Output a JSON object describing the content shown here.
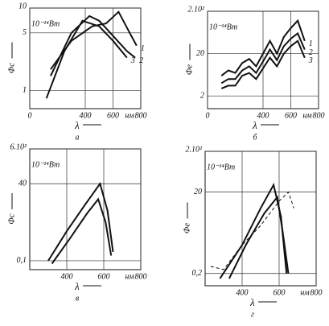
{
  "chart_data": [
    {
      "type": "line",
      "caption": "а",
      "x_label": "λ",
      "x_unit": "нм",
      "y_label": "Φc",
      "y_unit": "10⁻¹⁴Вт",
      "xlim": [
        0,
        800
      ],
      "xticks": [
        0,
        400,
        600,
        800
      ],
      "ylim": [
        0.6,
        10
      ],
      "yticks": [
        1,
        5,
        10
      ],
      "y_scale": "log",
      "grid": true,
      "series": [
        {
          "name": "1",
          "color": "#111111",
          "x": [
            150,
            300,
            450,
            550,
            640,
            720,
            770
          ],
          "values": [
            1.8,
            4,
            6,
            6.5,
            9,
            5,
            3.5
          ]
        },
        {
          "name": "2",
          "color": "#111111",
          "x": [
            150,
            300,
            430,
            500,
            580,
            700,
            760
          ],
          "values": [
            1.5,
            5,
            8,
            7,
            5,
            3,
            2.5
          ]
        },
        {
          "name": "3",
          "color": "#111111",
          "x": [
            120,
            250,
            380,
            500,
            600,
            700
          ],
          "values": [
            0.8,
            3,
            7,
            6,
            4,
            2.5
          ]
        }
      ]
    },
    {
      "type": "line",
      "caption": "б",
      "x_label": "λ",
      "x_unit": "нм",
      "y_label": "Φe",
      "y_unit": "10⁻¹⁴Вт",
      "xlim": [
        0,
        800
      ],
      "xticks": [
        0,
        400,
        600,
        800
      ],
      "ylim": [
        1,
        200
      ],
      "yticks": [
        2,
        20,
        {
          "value": 200,
          "label": "2.10²"
        }
      ],
      "y_scale": "log",
      "grid": true,
      "series": [
        {
          "name": "1",
          "color": "#111111",
          "x": [
            100,
            150,
            200,
            250,
            300,
            350,
            400,
            450,
            500,
            550,
            600,
            650,
            700
          ],
          "values": [
            6,
            8,
            7,
            12,
            15,
            10,
            20,
            40,
            20,
            50,
            80,
            120,
            40
          ]
        },
        {
          "name": "2",
          "color": "#111111",
          "x": [
            100,
            150,
            200,
            250,
            300,
            350,
            400,
            450,
            500,
            550,
            600,
            650,
            700
          ],
          "values": [
            4,
            5,
            5,
            8,
            10,
            7,
            13,
            25,
            14,
            30,
            45,
            60,
            25
          ]
        },
        {
          "name": "3",
          "color": "#111111",
          "x": [
            100,
            150,
            200,
            250,
            300,
            350,
            400,
            450,
            500,
            550,
            600,
            650,
            700
          ],
          "values": [
            3,
            3.5,
            3.5,
            6,
            7,
            5,
            9,
            16,
            10,
            20,
            30,
            40,
            16
          ]
        }
      ]
    },
    {
      "type": "line",
      "caption": "в",
      "x_label": "λ",
      "x_unit": "нм",
      "y_label": "Φc",
      "y_unit": "10⁻¹⁴Вт",
      "xlim": [
        200,
        800
      ],
      "xticks": [
        400,
        600,
        800
      ],
      "ylim": [
        0.05,
        600
      ],
      "yticks": [
        {
          "value": 0.1,
          "label": "0,1"
        },
        40,
        {
          "value": 600,
          "label": "6.10²"
        }
      ],
      "y_scale": "log",
      "grid": true,
      "series": [
        {
          "color": "#111111",
          "x": [
            300,
            400,
            500,
            580,
            620,
            650
          ],
          "values": [
            0.1,
            1,
            8,
            40,
            5,
            0.2
          ]
        },
        {
          "color": "#111111",
          "x": [
            320,
            420,
            510,
            570,
            610,
            640
          ],
          "values": [
            0.08,
            0.6,
            4,
            12,
            2,
            0.15
          ]
        }
      ]
    },
    {
      "type": "line",
      "caption": "г",
      "x_label": "λ",
      "x_unit": "нм",
      "y_label": "Φe",
      "y_unit": "10⁻¹⁴Вт",
      "xlim": [
        200,
        800
      ],
      "xticks": [
        400,
        600,
        800
      ],
      "ylim": [
        0.1,
        200
      ],
      "yticks": [
        {
          "value": 0.2,
          "label": "0,2"
        },
        20,
        {
          "value": 200,
          "label": "2.10²"
        }
      ],
      "y_scale": "log",
      "grid": true,
      "series": [
        {
          "color": "#111111",
          "x": [
            280,
            400,
            500,
            570,
            610,
            640
          ],
          "values": [
            0.15,
            1,
            8,
            30,
            5,
            0.2
          ]
        },
        {
          "color": "#111111",
          "x": [
            330,
            420,
            520,
            590,
            620,
            650
          ],
          "values": [
            0.15,
            1,
            6,
            15,
            2,
            0.2
          ]
        },
        {
          "color": "#111111",
          "dash": true,
          "x": [
            230,
            300,
            400,
            500,
            600,
            650,
            680
          ],
          "values": [
            0.3,
            0.25,
            1,
            3,
            12,
            20,
            8
          ]
        }
      ]
    }
  ]
}
